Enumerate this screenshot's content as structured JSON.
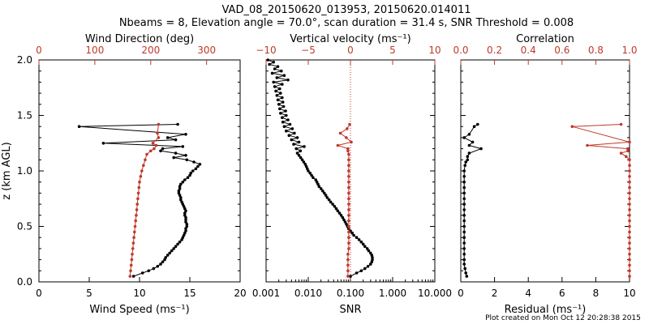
{
  "figure": {
    "title_line1": "VAD_08_20150620_013953, 20150620.014011",
    "title_line2": "Nbeams = 8, Elevation angle = 70.0°, scan duration = 31.4 s, SNR Threshold = 0.008",
    "ylabel": "z (km AGL)",
    "footer": "Plot created on Mon Oct 12 20:28:38 2015",
    "colors": {
      "black": "#000000",
      "red": "#c0392b"
    }
  },
  "chart_data": [
    {
      "type": "line",
      "panel": "wind",
      "xlabel": "Wind Speed (ms⁻¹)",
      "top_xlabel": "Wind Direction (deg)",
      "xlim": [
        0,
        20
      ],
      "top_xlim": [
        0,
        360
      ],
      "ylim": [
        0,
        2.0
      ],
      "x_ticks": [
        "0",
        "5",
        "10",
        "15",
        "20"
      ],
      "top_ticks": [
        "0",
        "100",
        "200",
        "300"
      ],
      "y_ticks": [
        "0.0",
        "0.5",
        "1.0",
        "1.5",
        "2.0"
      ],
      "series": [
        {
          "color": "#000000",
          "z": [
            0.05,
            0.08,
            0.1,
            0.12,
            0.14,
            0.16,
            0.18,
            0.2,
            0.22,
            0.24,
            0.26,
            0.28,
            0.3,
            0.32,
            0.34,
            0.36,
            0.38,
            0.4,
            0.42,
            0.44,
            0.46,
            0.48,
            0.5,
            0.52,
            0.54,
            0.56,
            0.58,
            0.6,
            0.62,
            0.64,
            0.66,
            0.68,
            0.7,
            0.72,
            0.74,
            0.76,
            0.78,
            0.8,
            0.82,
            0.84,
            0.86,
            0.88,
            0.9,
            0.92,
            0.94,
            0.96,
            0.98,
            1.0,
            1.02,
            1.04,
            1.06,
            1.08,
            1.1,
            1.12,
            1.14,
            1.16,
            1.18,
            1.2,
            1.22,
            1.25,
            1.28,
            1.3,
            1.33,
            1.4,
            1.42
          ],
          "values": [
            9.4,
            10.3,
            10.9,
            11.4,
            11.8,
            12.1,
            12.3,
            12.5,
            12.6,
            12.8,
            13.0,
            13.2,
            13.4,
            13.6,
            13.8,
            14.0,
            14.2,
            14.3,
            14.4,
            14.5,
            14.6,
            14.6,
            14.7,
            14.7,
            14.6,
            14.6,
            14.6,
            14.5,
            14.5,
            14.6,
            14.5,
            14.4,
            14.3,
            14.2,
            14.1,
            14.1,
            14.0,
            13.9,
            13.9,
            14.0,
            14.0,
            14.1,
            14.3,
            14.5,
            14.8,
            15.0,
            15.1,
            15.3,
            15.6,
            15.8,
            16.0,
            15.4,
            14.7,
            13.4,
            14.6,
            13.6,
            12.1,
            12.3,
            14.3,
            6.4,
            13.6,
            12.8,
            14.6,
            4.0,
            13.8
          ]
        },
        {
          "color": "#c0392b",
          "axis": "top",
          "z": [
            0.05,
            0.1,
            0.15,
            0.2,
            0.25,
            0.3,
            0.35,
            0.4,
            0.45,
            0.5,
            0.55,
            0.6,
            0.65,
            0.7,
            0.75,
            0.8,
            0.85,
            0.9,
            0.95,
            1.0,
            1.05,
            1.1,
            1.15,
            1.18,
            1.2,
            1.23,
            1.25,
            1.3,
            1.34,
            1.42
          ],
          "values": [
            163,
            164,
            165,
            166,
            167,
            168,
            169,
            170,
            171,
            172,
            173,
            174,
            175,
            176,
            177,
            178,
            179,
            180,
            182,
            184,
            187,
            190,
            193,
            200,
            206,
            210,
            204,
            214,
            212,
            214
          ]
        }
      ]
    },
    {
      "type": "line",
      "panel": "snr",
      "xlabel": "SNR",
      "top_xlabel": "Vertical velocity (ms⁻¹)",
      "xscale": "log",
      "xlim": [
        0.001,
        10.0
      ],
      "top_xlim": [
        -10,
        10
      ],
      "ylim": [
        0,
        2.0
      ],
      "x_ticks": [
        "0.001",
        "0.010",
        "0.100",
        "1.000",
        "10.000"
      ],
      "top_ticks": [
        "−10",
        "−5",
        "0",
        "5",
        "10"
      ],
      "series": [
        {
          "color": "#000000",
          "z": [
            0.05,
            0.08,
            0.1,
            0.12,
            0.14,
            0.16,
            0.18,
            0.2,
            0.22,
            0.24,
            0.26,
            0.28,
            0.3,
            0.32,
            0.34,
            0.36,
            0.38,
            0.4,
            0.42,
            0.44,
            0.46,
            0.48,
            0.5,
            0.52,
            0.54,
            0.56,
            0.58,
            0.6,
            0.62,
            0.64,
            0.66,
            0.68,
            0.7,
            0.72,
            0.74,
            0.76,
            0.78,
            0.8,
            0.82,
            0.84,
            0.86,
            0.88,
            0.9,
            0.92,
            0.94,
            0.96,
            0.98,
            1.0,
            1.02,
            1.04,
            1.06,
            1.08,
            1.1,
            1.12,
            1.14,
            1.16,
            1.18,
            1.2,
            1.22,
            1.24,
            1.26,
            1.28,
            1.3,
            1.32,
            1.34,
            1.36,
            1.38,
            1.4,
            1.42,
            1.44,
            1.46,
            1.48,
            1.5,
            1.52,
            1.54,
            1.56,
            1.58,
            1.6,
            1.62,
            1.64,
            1.66,
            1.68,
            1.7,
            1.72,
            1.74,
            1.76,
            1.78,
            1.8,
            1.82,
            1.84,
            1.86,
            1.88,
            1.9,
            1.92,
            1.94,
            1.96,
            1.98,
            2.0
          ],
          "values": [
            0.1,
            0.14,
            0.18,
            0.22,
            0.26,
            0.3,
            0.32,
            0.33,
            0.33,
            0.32,
            0.3,
            0.27,
            0.25,
            0.22,
            0.2,
            0.18,
            0.16,
            0.14,
            0.12,
            0.11,
            0.1,
            0.09,
            0.085,
            0.08,
            0.075,
            0.07,
            0.065,
            0.06,
            0.055,
            0.05,
            0.046,
            0.042,
            0.038,
            0.034,
            0.031,
            0.028,
            0.026,
            0.024,
            0.022,
            0.02,
            0.018,
            0.017,
            0.016,
            0.015,
            0.013,
            0.012,
            0.011,
            0.01,
            0.0095,
            0.009,
            0.0085,
            0.0078,
            0.0072,
            0.0066,
            0.006,
            0.0055,
            0.0065,
            0.0052,
            0.008,
            0.0045,
            0.006,
            0.004,
            0.0055,
            0.0035,
            0.0047,
            0.003,
            0.0042,
            0.0027,
            0.0037,
            0.0025,
            0.0033,
            0.0024,
            0.003,
            0.0022,
            0.0029,
            0.0021,
            0.0026,
            0.002,
            0.0025,
            0.0019,
            0.0024,
            0.0018,
            0.0022,
            0.0017,
            0.0021,
            0.0016,
            0.0024,
            0.0015,
            0.0033,
            0.0018,
            0.0027,
            0.0014,
            0.0023,
            0.0016,
            0.0019,
            0.0012,
            0.0015,
            0.0011
          ]
        },
        {
          "color": "#c0392b",
          "axis": "top",
          "z": [
            0.05,
            0.1,
            0.15,
            0.2,
            0.25,
            0.3,
            0.35,
            0.4,
            0.45,
            0.5,
            0.55,
            0.6,
            0.65,
            0.7,
            0.75,
            0.8,
            0.85,
            0.9,
            0.95,
            1.0,
            1.05,
            1.1,
            1.15,
            1.18,
            1.2,
            1.23,
            1.26,
            1.3,
            1.34,
            1.38,
            1.42
          ],
          "values": [
            -0.3,
            -0.3,
            -0.3,
            -0.3,
            -0.3,
            -0.2,
            -0.2,
            -0.2,
            -0.2,
            -0.2,
            -0.2,
            -0.2,
            -0.2,
            -0.2,
            -0.2,
            -0.2,
            -0.2,
            -0.2,
            -0.2,
            -0.2,
            -0.2,
            -0.2,
            -0.2,
            -0.3,
            -0.3,
            -1.5,
            0.1,
            -0.5,
            -1.2,
            -0.4,
            -0.1
          ]
        }
      ]
    },
    {
      "type": "line",
      "panel": "residual",
      "xlabel": "Residual (ms⁻¹)",
      "top_xlabel": "Correlation",
      "xlim": [
        0,
        10
      ],
      "top_xlim": [
        0.0,
        1.0
      ],
      "ylim": [
        0,
        2.0
      ],
      "x_ticks": [
        "0",
        "2",
        "4",
        "6",
        "8",
        "10"
      ],
      "top_ticks": [
        "0.0",
        "0.2",
        "0.4",
        "0.6",
        "0.8",
        "1.0"
      ],
      "series": [
        {
          "color": "#000000",
          "z": [
            0.05,
            0.08,
            0.12,
            0.16,
            0.2,
            0.25,
            0.3,
            0.35,
            0.4,
            0.45,
            0.5,
            0.55,
            0.6,
            0.65,
            0.7,
            0.75,
            0.8,
            0.85,
            0.9,
            0.95,
            1.0,
            1.05,
            1.08,
            1.1,
            1.13,
            1.16,
            1.2,
            1.23,
            1.26,
            1.3,
            1.33,
            1.4,
            1.42
          ],
          "values": [
            0.35,
            0.3,
            0.25,
            0.2,
            0.2,
            0.2,
            0.2,
            0.2,
            0.2,
            0.2,
            0.2,
            0.2,
            0.2,
            0.2,
            0.2,
            0.2,
            0.2,
            0.2,
            0.2,
            0.2,
            0.2,
            0.25,
            0.3,
            0.4,
            0.4,
            0.5,
            1.2,
            0.5,
            0.7,
            0.2,
            0.5,
            0.8,
            1.0
          ]
        },
        {
          "color": "#c0392b",
          "axis": "top",
          "z": [
            0.05,
            0.1,
            0.15,
            0.2,
            0.25,
            0.3,
            0.35,
            0.4,
            0.45,
            0.5,
            0.55,
            0.6,
            0.65,
            0.7,
            0.75,
            0.8,
            0.85,
            0.9,
            0.95,
            1.0,
            1.05,
            1.1,
            1.13,
            1.16,
            1.18,
            1.2,
            1.23,
            1.26,
            1.4,
            1.42
          ],
          "values": [
            1.0,
            1.0,
            1.0,
            1.0,
            1.0,
            1.0,
            1.0,
            1.0,
            1.0,
            1.0,
            1.0,
            1.0,
            1.0,
            1.0,
            1.0,
            1.0,
            1.0,
            1.0,
            1.0,
            1.0,
            1.0,
            1.0,
            0.98,
            0.95,
            0.99,
            0.99,
            0.75,
            1.0,
            0.66,
            0.95
          ]
        }
      ]
    }
  ]
}
